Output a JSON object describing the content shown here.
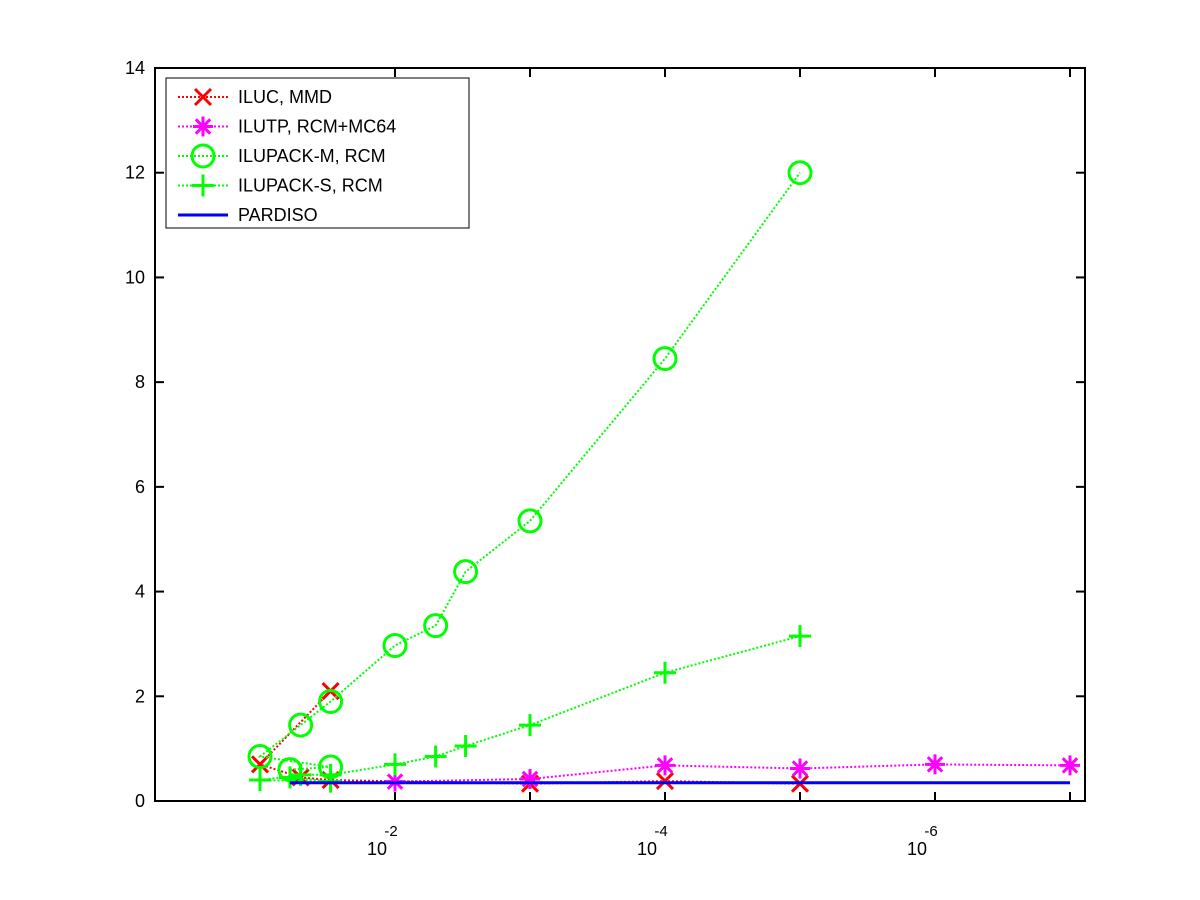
{
  "chart_data": {
    "type": "line",
    "xscale": "log",
    "xdirection": "reversed",
    "xlim": [
      0.06,
      1e-07
    ],
    "ylim": [
      0,
      14
    ],
    "grid": false,
    "legend_placement": "top-left",
    "x_tick_labels": [
      {
        "value": 0.01,
        "base": "10",
        "exponent": "-2"
      },
      {
        "value": 0.0001,
        "base": "10",
        "exponent": "-4"
      },
      {
        "value": 1e-06,
        "base": "10",
        "exponent": "-6"
      }
    ],
    "y_tick_labels": [
      "0",
      "2",
      "4",
      "6",
      "8",
      "10",
      "12",
      "14"
    ],
    "series": [
      {
        "name": "ILUC, MMD",
        "color": "#ff0000",
        "marker": "x",
        "line": "dotted",
        "points": [
          [
            0.03,
            2.1
          ],
          [
            0.1,
            0.7
          ],
          [
            0.05,
            0.45
          ],
          [
            0.03,
            0.4
          ],
          [
            0.001,
            0.33
          ],
          [
            0.0001,
            0.38
          ],
          [
            1e-05,
            0.33
          ]
        ]
      },
      {
        "name": "ILUTP, RCM+MC64",
        "color": "#ff00ff",
        "marker": "asterisk",
        "line": "dotted",
        "points": [
          [
            0.01,
            0.37
          ],
          [
            0.001,
            0.42
          ],
          [
            0.0001,
            0.68
          ],
          [
            1e-05,
            0.62
          ],
          [
            1e-06,
            0.7
          ],
          [
            1e-07,
            0.68
          ]
        ]
      },
      {
        "name": "ILUPACK-M, RCM",
        "color": "#00ff00",
        "marker": "circle",
        "line": "dotted",
        "points": [
          [
            0.06,
            0.6
          ],
          [
            0.03,
            0.65
          ],
          [
            0.1,
            0.85
          ],
          [
            0.05,
            1.45
          ],
          [
            0.03,
            1.9
          ],
          [
            0.01,
            2.97
          ],
          [
            0.005,
            3.35
          ],
          [
            0.003,
            4.38
          ],
          [
            0.001,
            5.35
          ],
          [
            0.0001,
            8.45
          ],
          [
            1e-05,
            12.0
          ]
        ]
      },
      {
        "name": "ILUPACK-S, RCM",
        "color": "#00ff00",
        "marker": "plus",
        "line": "dotted",
        "points": [
          [
            0.06,
            0.45
          ],
          [
            0.03,
            0.37
          ],
          [
            0.1,
            0.4
          ],
          [
            0.05,
            0.5
          ],
          [
            0.03,
            0.5
          ],
          [
            0.01,
            0.7
          ],
          [
            0.005,
            0.85
          ],
          [
            0.003,
            1.05
          ],
          [
            0.001,
            1.45
          ],
          [
            0.0001,
            2.45
          ],
          [
            1e-05,
            3.15
          ]
        ]
      },
      {
        "name": "PARDISO",
        "color": "#0000ff",
        "marker": "none",
        "line": "solid",
        "points": [
          [
            0.06,
            0.35
          ],
          [
            1e-07,
            0.35
          ]
        ]
      }
    ]
  }
}
